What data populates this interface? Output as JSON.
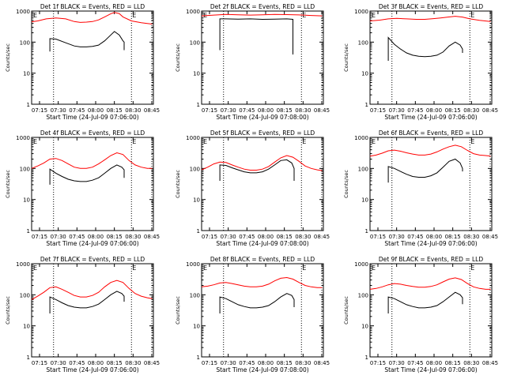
{
  "chart_data": [
    {
      "type": "line",
      "title": "Det 1f BLACK = Events, RED = LLD",
      "xlabel": "Start Time (24-Jul-09 07:06:00)",
      "ylabel": "Counts/sec",
      "xticks": [
        "07:15",
        "07:30",
        "07:45",
        "08:00",
        "08:15",
        "08:30",
        "08:45"
      ],
      "yticks": [
        "1",
        "10",
        "100",
        "1000"
      ],
      "ylim": [
        1,
        1000
      ],
      "log_y": true,
      "markers": [
        "E",
        "E"
      ],
      "series": [
        {
          "name": "LLD",
          "color": "#ff0000",
          "x": [
            0,
            5,
            12,
            20,
            28,
            35,
            40,
            45,
            50,
            55,
            60,
            65,
            68,
            72,
            75,
            82,
            90,
            95,
            99
          ],
          "values": [
            450,
            480,
            560,
            600,
            560,
            460,
            430,
            440,
            460,
            520,
            650,
            820,
            900,
            830,
            650,
            480,
            420,
            400,
            380
          ]
        },
        {
          "name": "Events",
          "color": "#000000",
          "x": [
            15,
            15,
            20,
            28,
            35,
            40,
            45,
            50,
            55,
            60,
            65,
            68,
            72,
            75,
            76,
            76
          ],
          "values": [
            50,
            130,
            125,
            95,
            75,
            70,
            70,
            73,
            80,
            110,
            170,
            220,
            170,
            110,
            100,
            55
          ]
        }
      ]
    },
    {
      "type": "line",
      "title": "Det 2f BLACK = Events, RED = LLD",
      "xlabel": "Start Time (24-Jul-09 07:08:00)",
      "ylabel": "Counts/sec",
      "xticks": [
        "07:15",
        "07:30",
        "07:45",
        "08:00",
        "08:15",
        "08:30",
        "08:45"
      ],
      "yticks": [
        "1",
        "10",
        "100",
        "1000"
      ],
      "ylim": [
        1,
        1000
      ],
      "log_y": true,
      "markers": [
        "E",
        "E"
      ],
      "series": [
        {
          "name": "LLD",
          "color": "#ff0000",
          "x": [
            0,
            10,
            20,
            30,
            40,
            50,
            60,
            70,
            80,
            90,
            99
          ],
          "values": [
            700,
            740,
            780,
            760,
            740,
            760,
            780,
            770,
            750,
            720,
            700
          ]
        },
        {
          "name": "Events",
          "color": "#000000",
          "x": [
            15,
            15,
            20,
            30,
            40,
            50,
            60,
            70,
            75,
            75
          ],
          "values": [
            55,
            560,
            560,
            550,
            560,
            540,
            550,
            560,
            540,
            40
          ]
        }
      ]
    },
    {
      "type": "line",
      "title": "Det 3f BLACK = Events, RED = LLD",
      "xlabel": "Start Time (24-Jul-09 07:06:00)",
      "ylabel": "Counts/sec",
      "xticks": [
        "07:15",
        "07:30",
        "07:45",
        "08:00",
        "08:15",
        "08:30",
        "08:45"
      ],
      "yticks": [
        "1",
        "10",
        "100",
        "1000"
      ],
      "ylim": [
        1,
        1000
      ],
      "log_y": true,
      "markers": [
        "E",
        "E"
      ],
      "series": [
        {
          "name": "LLD",
          "color": "#ff0000",
          "x": [
            0,
            8,
            15,
            22,
            30,
            38,
            45,
            52,
            58,
            64,
            70,
            76,
            82,
            90,
            99
          ],
          "values": [
            480,
            510,
            560,
            580,
            560,
            540,
            540,
            570,
            600,
            640,
            680,
            640,
            560,
            500,
            460
          ]
        },
        {
          "name": "Events",
          "color": "#000000",
          "x": [
            15,
            15,
            20,
            25,
            30,
            35,
            40,
            45,
            50,
            55,
            60,
            65,
            70,
            74,
            76,
            76
          ],
          "values": [
            25,
            140,
            85,
            60,
            45,
            38,
            35,
            34,
            35,
            38,
            48,
            75,
            100,
            80,
            60,
            45
          ]
        }
      ]
    },
    {
      "type": "line",
      "title": "Det 4f BLACK = Events, RED = LLD",
      "xlabel": "Start Time (24-Jul-09 07:06:00)",
      "ylabel": "Counts/sec",
      "xticks": [
        "07:15",
        "07:30",
        "07:45",
        "08:00",
        "08:15",
        "08:30",
        "08:45"
      ],
      "yticks": [
        "1",
        "10",
        "100",
        "1000"
      ],
      "ylim": [
        1,
        1000
      ],
      "log_y": true,
      "markers": [
        "E",
        "E"
      ],
      "series": [
        {
          "name": "LLD",
          "color": "#ff0000",
          "x": [
            0,
            5,
            10,
            15,
            20,
            25,
            30,
            35,
            40,
            45,
            50,
            55,
            60,
            65,
            70,
            75,
            80,
            85,
            90,
            95,
            99
          ],
          "values": [
            100,
            120,
            150,
            200,
            210,
            180,
            140,
            110,
            100,
            100,
            110,
            140,
            190,
            260,
            320,
            280,
            180,
            130,
            110,
            100,
            100
          ]
        },
        {
          "name": "Events",
          "color": "#000000",
          "x": [
            15,
            15,
            20,
            25,
            30,
            35,
            40,
            45,
            50,
            55,
            60,
            65,
            70,
            74,
            76,
            76
          ],
          "values": [
            30,
            95,
            70,
            55,
            45,
            40,
            38,
            38,
            42,
            50,
            70,
            100,
            130,
            110,
            90,
            50
          ]
        }
      ]
    },
    {
      "type": "line",
      "title": "Det 5f BLACK = Events, RED = LLD",
      "xlabel": "Start Time (24-Jul-09 07:08:00)",
      "ylabel": "Counts/sec",
      "xticks": [
        "07:15",
        "07:30",
        "07:45",
        "08:00",
        "08:15",
        "08:30",
        "08:45"
      ],
      "yticks": [
        "1",
        "10",
        "100",
        "1000"
      ],
      "ylim": [
        1,
        1000
      ],
      "log_y": true,
      "markers": [
        "E",
        "E"
      ],
      "series": [
        {
          "name": "LLD",
          "color": "#ff0000",
          "x": [
            0,
            5,
            10,
            15,
            20,
            25,
            30,
            35,
            40,
            45,
            50,
            55,
            60,
            65,
            70,
            75,
            80,
            85,
            90,
            95,
            99
          ],
          "values": [
            90,
            110,
            140,
            160,
            155,
            130,
            110,
            95,
            88,
            88,
            95,
            115,
            160,
            220,
            260,
            230,
            170,
            120,
            100,
            90,
            85
          ]
        },
        {
          "name": "Events",
          "color": "#000000",
          "x": [
            15,
            15,
            20,
            25,
            30,
            35,
            40,
            45,
            50,
            55,
            60,
            65,
            70,
            74,
            76,
            76
          ],
          "values": [
            40,
            130,
            125,
            105,
            90,
            78,
            72,
            72,
            78,
            95,
            130,
            180,
            190,
            150,
            100,
            40
          ]
        }
      ]
    },
    {
      "type": "line",
      "title": "Det 6f BLACK = Events, RED = LLD",
      "xlabel": "Start Time (24-Jul-09 07:06:00)",
      "ylabel": "Counts/sec",
      "xticks": [
        "07:15",
        "07:30",
        "07:45",
        "08:00",
        "08:15",
        "08:30",
        "08:45"
      ],
      "yticks": [
        "1",
        "10",
        "100",
        "1000"
      ],
      "ylim": [
        1,
        1000
      ],
      "log_y": true,
      "markers": [
        "E",
        "E"
      ],
      "series": [
        {
          "name": "LLD",
          "color": "#ff0000",
          "x": [
            0,
            5,
            10,
            15,
            20,
            25,
            30,
            35,
            40,
            45,
            50,
            55,
            60,
            65,
            70,
            75,
            80,
            85,
            90,
            95,
            99
          ],
          "values": [
            250,
            270,
            310,
            370,
            390,
            360,
            320,
            290,
            270,
            270,
            290,
            340,
            420,
            500,
            560,
            500,
            380,
            300,
            270,
            260,
            250
          ]
        },
        {
          "name": "Events",
          "color": "#000000",
          "x": [
            15,
            15,
            20,
            25,
            30,
            35,
            40,
            45,
            50,
            55,
            60,
            65,
            70,
            74,
            76,
            76
          ],
          "values": [
            35,
            115,
            100,
            80,
            65,
            55,
            52,
            52,
            58,
            72,
            110,
            170,
            200,
            150,
            100,
            80
          ]
        }
      ]
    },
    {
      "type": "line",
      "title": "Det 7f BLACK = Events, RED = LLD",
      "xlabel": "Start Time (24-Jul-09 07:06:00)",
      "ylabel": "Counts/sec",
      "xticks": [
        "07:15",
        "07:30",
        "07:45",
        "08:00",
        "08:15",
        "08:30",
        "08:45"
      ],
      "yticks": [
        "1",
        "10",
        "100",
        "1000"
      ],
      "ylim": [
        1,
        1000
      ],
      "log_y": true,
      "markers": [
        "E",
        "E"
      ],
      "series": [
        {
          "name": "LLD",
          "color": "#ff0000",
          "x": [
            0,
            5,
            10,
            15,
            20,
            25,
            30,
            35,
            40,
            45,
            50,
            55,
            60,
            65,
            70,
            75,
            80,
            85,
            90,
            95,
            99
          ],
          "values": [
            70,
            90,
            120,
            170,
            180,
            150,
            120,
            95,
            85,
            85,
            95,
            120,
            180,
            250,
            290,
            250,
            160,
            110,
            90,
            80,
            75
          ]
        },
        {
          "name": "Events",
          "color": "#000000",
          "x": [
            15,
            15,
            20,
            25,
            30,
            35,
            40,
            45,
            50,
            55,
            60,
            65,
            70,
            74,
            76,
            76
          ],
          "values": [
            25,
            85,
            70,
            55,
            45,
            40,
            38,
            38,
            42,
            50,
            70,
            100,
            130,
            110,
            90,
            60
          ]
        }
      ]
    },
    {
      "type": "line",
      "title": "Det 8f BLACK = Events, RED = LLD",
      "xlabel": "Start Time (24-Jul-09 07:08:00)",
      "ylabel": "Counts/sec",
      "xticks": [
        "07:15",
        "07:30",
        "07:45",
        "08:00",
        "08:15",
        "08:30",
        "08:45"
      ],
      "yticks": [
        "1",
        "10",
        "100",
        "1000"
      ],
      "ylim": [
        1,
        1000
      ],
      "log_y": true,
      "markers": [
        "E",
        "E"
      ],
      "series": [
        {
          "name": "LLD",
          "color": "#ff0000",
          "x": [
            0,
            5,
            10,
            15,
            20,
            25,
            30,
            35,
            40,
            45,
            50,
            55,
            60,
            65,
            70,
            75,
            80,
            85,
            90,
            95,
            99
          ],
          "values": [
            180,
            190,
            210,
            240,
            250,
            230,
            210,
            190,
            180,
            180,
            190,
            220,
            280,
            340,
            360,
            320,
            250,
            200,
            180,
            170,
            170
          ]
        },
        {
          "name": "Events",
          "color": "#000000",
          "x": [
            15,
            15,
            20,
            25,
            30,
            35,
            40,
            45,
            50,
            55,
            60,
            65,
            70,
            74,
            76,
            76
          ],
          "values": [
            25,
            85,
            75,
            60,
            48,
            42,
            38,
            38,
            40,
            45,
            60,
            85,
            110,
            95,
            70,
            40
          ]
        }
      ]
    },
    {
      "type": "line",
      "title": "Det 9f BLACK = Events, RED = LLD",
      "xlabel": "Start Time (24-Jul-09 07:06:00)",
      "ylabel": "Counts/sec",
      "xticks": [
        "07:15",
        "07:30",
        "07:45",
        "08:00",
        "08:15",
        "08:30",
        "08:45"
      ],
      "yticks": [
        "1",
        "10",
        "100",
        "1000"
      ],
      "ylim": [
        1,
        1000
      ],
      "log_y": true,
      "markers": [
        "E",
        "E"
      ],
      "series": [
        {
          "name": "LLD",
          "color": "#ff0000",
          "x": [
            0,
            5,
            10,
            15,
            20,
            25,
            30,
            35,
            40,
            45,
            50,
            55,
            60,
            65,
            70,
            75,
            80,
            85,
            90,
            95,
            99
          ],
          "values": [
            150,
            160,
            180,
            210,
            230,
            220,
            200,
            185,
            175,
            175,
            185,
            210,
            260,
            320,
            350,
            310,
            230,
            180,
            160,
            150,
            150
          ]
        },
        {
          "name": "Events",
          "color": "#000000",
          "x": [
            15,
            15,
            20,
            25,
            30,
            35,
            40,
            45,
            50,
            55,
            60,
            65,
            70,
            74,
            76,
            76
          ],
          "values": [
            25,
            85,
            75,
            60,
            48,
            42,
            38,
            38,
            40,
            45,
            60,
            85,
            120,
            100,
            80,
            50
          ]
        }
      ]
    }
  ]
}
